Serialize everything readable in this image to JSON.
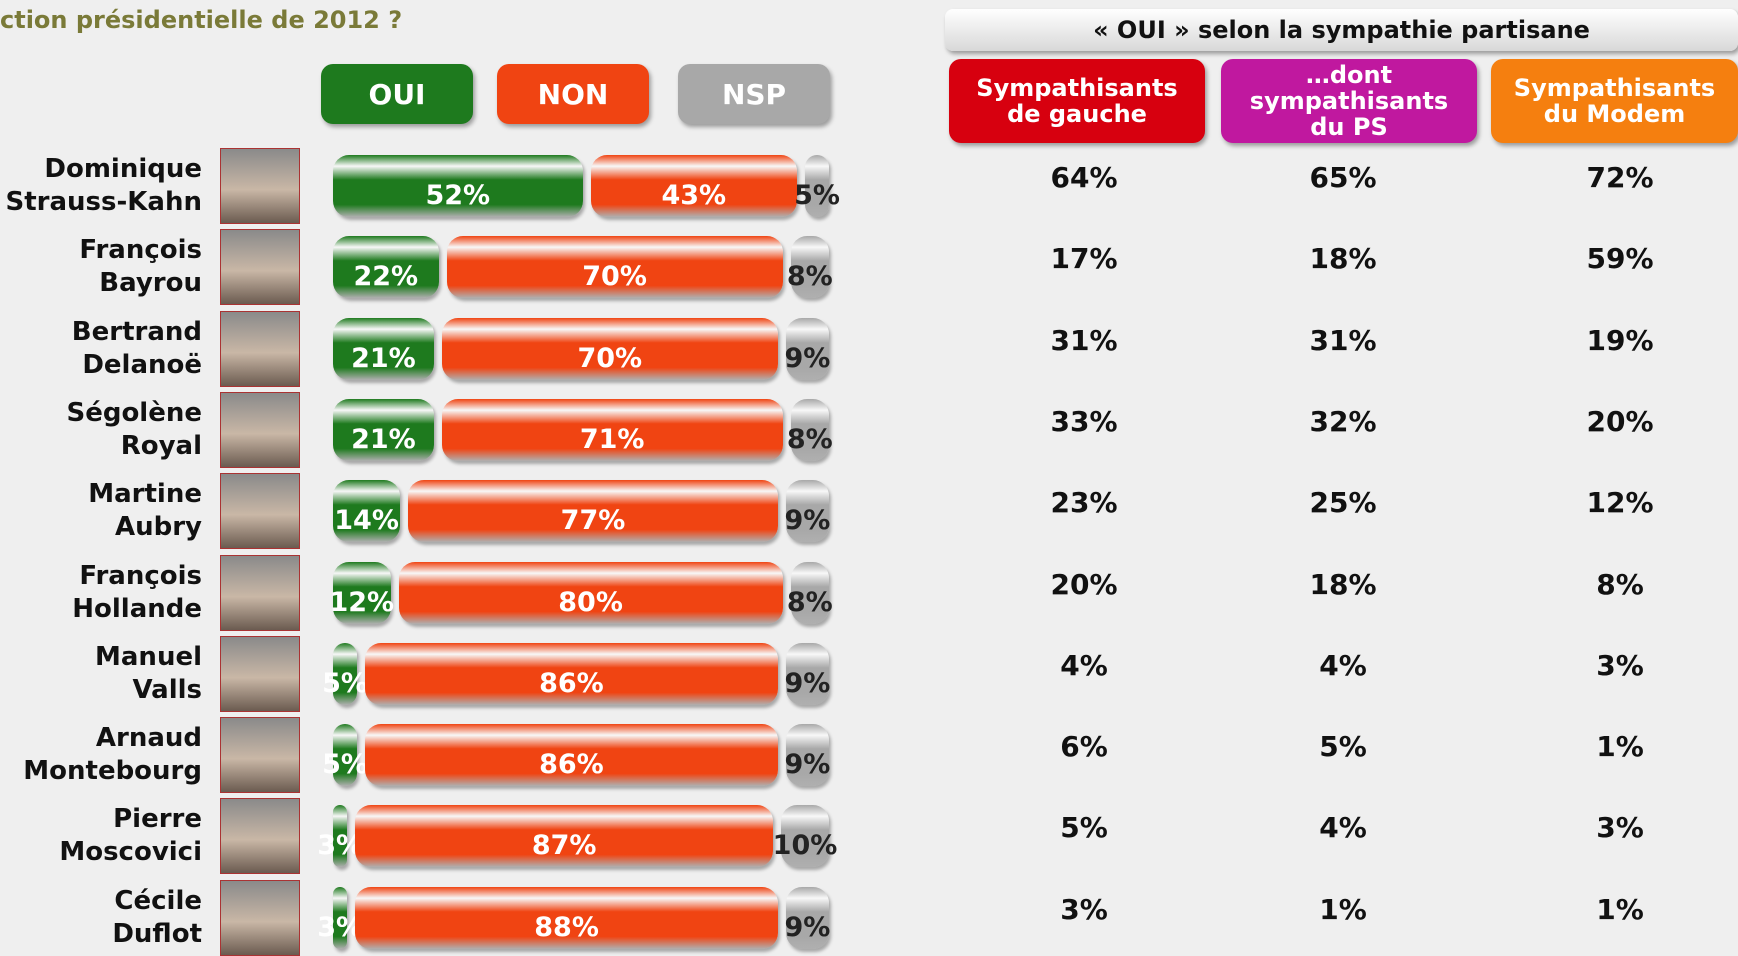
{
  "chart_data": {
    "type": "bar",
    "orientation": "horizontal",
    "stacked": true,
    "title": "ction présidentielle de 2012 ?",
    "categories": [
      "Dominique Strauss-Kahn",
      "François Bayrou",
      "Bertrand Delanoë",
      "Ségolène Royal",
      "Martine Aubry",
      "François Hollande",
      "Manuel Valls",
      "Arnaud Montebourg",
      "Pierre Moscovici",
      "Cécile Duflot"
    ],
    "series": [
      {
        "name": "OUI",
        "color": "#1e7a1e",
        "values": [
          52,
          22,
          21,
          21,
          14,
          12,
          5,
          5,
          3,
          3
        ],
        "value_labels": [
          "52%",
          "22%",
          "21%",
          "21%",
          "14%",
          "12%",
          "5%",
          "5%",
          "3%",
          "3%"
        ]
      },
      {
        "name": "NON",
        "color": "#f04412",
        "values": [
          43,
          70,
          70,
          71,
          77,
          80,
          86,
          86,
          87,
          88
        ],
        "value_labels": [
          "43%",
          "70%",
          "70%",
          "71%",
          "77%",
          "80%",
          "86%",
          "86%",
          "87%",
          "88%"
        ]
      },
      {
        "name": "NSP",
        "color": "#a8a8a8",
        "values": [
          5,
          8,
          9,
          8,
          9,
          8,
          9,
          9,
          10,
          9
        ],
        "value_labels": [
          "5%",
          "8%",
          "9%",
          "8%",
          "9%",
          "8%",
          "9%",
          "9%",
          "10%",
          "9%"
        ]
      }
    ]
  },
  "table": {
    "title": "« OUI » selon  la sympathie partisane",
    "columns": [
      {
        "label": "Sympathisants de gauche",
        "color": "#d7000f"
      },
      {
        "label": "…dont sympathisants du PS",
        "color": "#c0189f"
      },
      {
        "label": "Sympathisants du Modem",
        "color": "#f57f0f"
      }
    ],
    "rows": [
      [
        "64%",
        "65%",
        "72%"
      ],
      [
        "17%",
        "18%",
        "59%"
      ],
      [
        "31%",
        "31%",
        "19%"
      ],
      [
        "33%",
        "32%",
        "20%"
      ],
      [
        "23%",
        "25%",
        "12%"
      ],
      [
        "20%",
        "18%",
        "8%"
      ],
      [
        "4%",
        "4%",
        "3%"
      ],
      [
        "6%",
        "5%",
        "1%"
      ],
      [
        "5%",
        "4%",
        "3%"
      ],
      [
        "3%",
        "1%",
        "1%"
      ]
    ]
  }
}
